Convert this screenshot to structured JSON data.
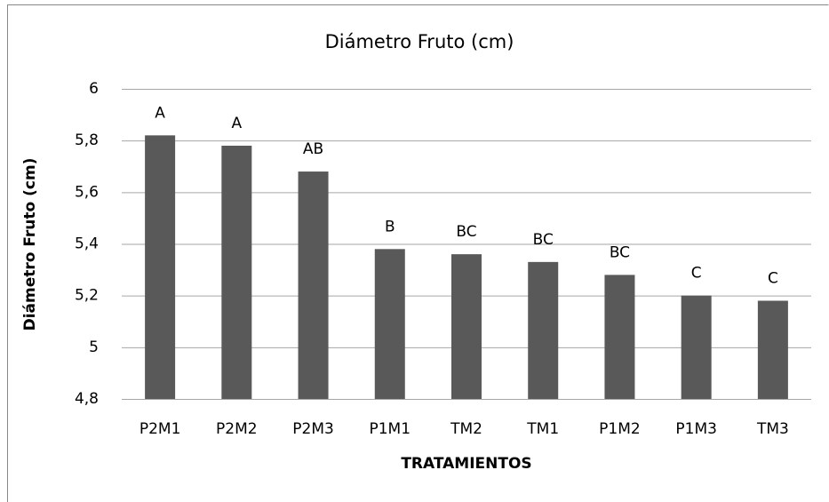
{
  "chart_data": {
    "type": "bar",
    "title": "Diámetro Fruto (cm)",
    "x_label": "TRATAMIENTOS",
    "y_label": "Diámetro Fruto (cm)",
    "categories": [
      "P2M1",
      "P2M2",
      "P2M3",
      "P1M1",
      "TM2",
      "TM1",
      "P1M2",
      "P1M3",
      "TM3"
    ],
    "values": [
      5.82,
      5.78,
      5.68,
      5.38,
      5.36,
      5.33,
      5.28,
      5.2,
      5.18
    ],
    "annotations": [
      "A",
      "A",
      "AB",
      "B",
      "BC",
      "BC",
      "BC",
      "C",
      "C"
    ],
    "color": "#595959",
    "ylim": [
      4.8,
      6
    ],
    "yticks": [
      {
        "value": 4.8,
        "label": "4,8"
      },
      5,
      {
        "value": 5.2,
        "label": "5,2"
      },
      {
        "value": 5.4,
        "label": "5,4"
      },
      {
        "value": 5.6,
        "label": "5,6"
      },
      {
        "value": 5.8,
        "label": "5,8"
      },
      6
    ],
    "grid": true
  }
}
